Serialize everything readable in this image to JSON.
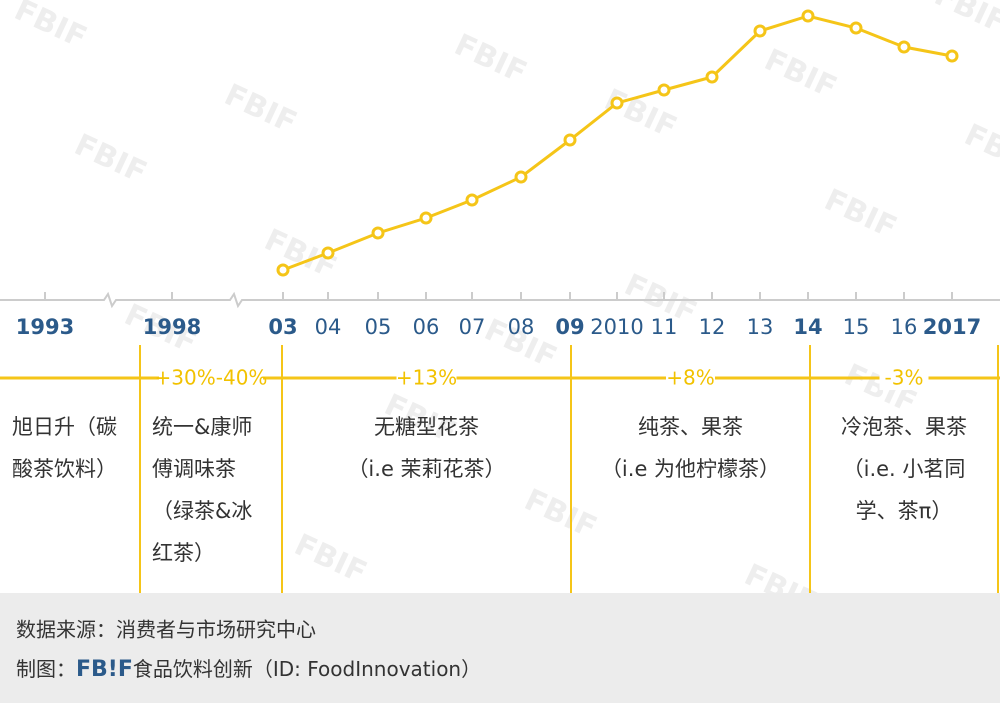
{
  "chart_data": {
    "type": "line",
    "color": "#f5c518",
    "categories": [
      "1993",
      "1998",
      "03",
      "04",
      "05",
      "06",
      "07",
      "08",
      "09",
      "2010",
      "11",
      "12",
      "13",
      "14",
      "15",
      "16",
      "2017"
    ],
    "values": [
      null,
      null,
      30,
      47,
      67,
      82,
      100,
      123,
      160,
      197,
      210,
      223,
      269,
      284,
      272,
      253,
      244
    ],
    "ylim": [
      0,
      300
    ]
  },
  "periods": [
    {
      "lines": [
        "旭日升（碳",
        "酸茶饮料）"
      ]
    },
    {
      "growth": "+30%-40%",
      "lines": [
        "统一&康师",
        "傅调味茶",
        "（绿茶&冰",
        "红茶）"
      ]
    },
    {
      "growth": "+13%",
      "lines": [
        "无糖型花茶",
        "（i.e 茉莉花茶）"
      ]
    },
    {
      "growth": "+8%",
      "lines": [
        "纯茶、果茶",
        "（i.e 为他柠檬茶）"
      ]
    },
    {
      "growth": "-3%",
      "lines": [
        "冷泡茶、果茶",
        "（i.e. 小茗同",
        "学、茶π）"
      ]
    }
  ],
  "watermark": "FBIF",
  "footer": {
    "source": "数据来源：消费者与市场研究中心",
    "credit": "制图：",
    "logo": "FB!F",
    "credit_name": "食品饮料创新（ID: FoodInnovation）"
  }
}
